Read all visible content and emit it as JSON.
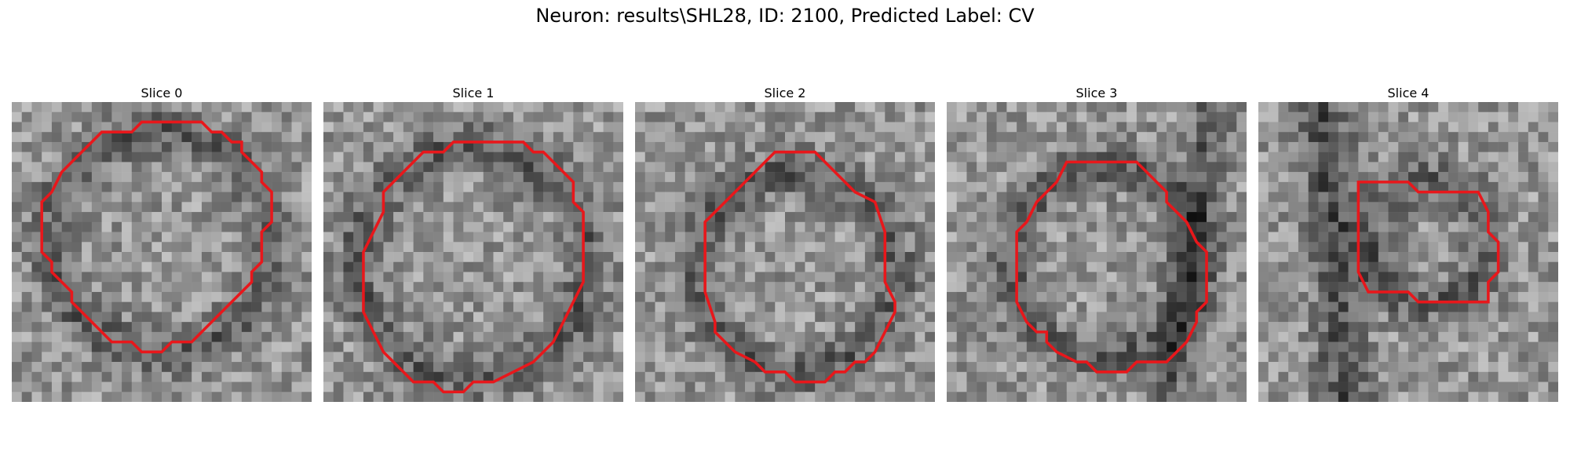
{
  "figure": {
    "title": "Neuron: results\\SHL28, ID: 2100, Predicted Label: CV",
    "contour_color": "#e8171b"
  },
  "panels": [
    {
      "title": "Slice 0"
    },
    {
      "title": "Slice 1"
    },
    {
      "title": "Slice 2"
    },
    {
      "title": "Slice 3"
    },
    {
      "title": "Slice 4"
    }
  ]
}
